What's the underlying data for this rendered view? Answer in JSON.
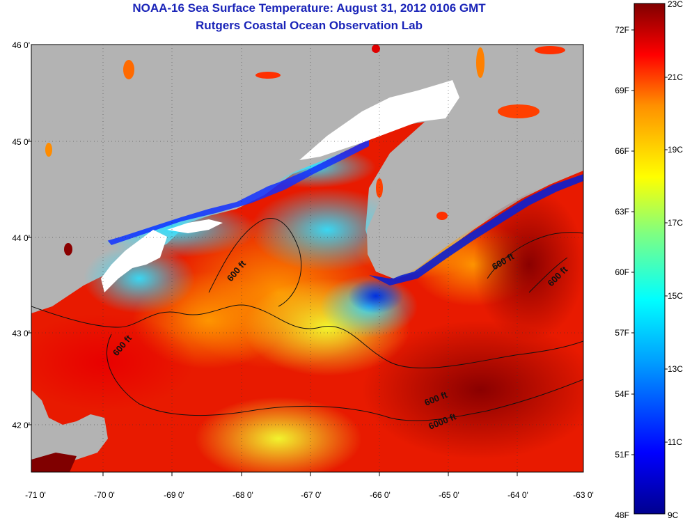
{
  "title": "NOAA-16 Sea Surface Temperature:  August 31, 2012 0106 GMT",
  "subtitle": "Rutgers Coastal Ocean Observation Lab",
  "map": {
    "longitude_ticks": [
      "-71 0'",
      "-70 0'",
      "-69 0'",
      "-68 0'",
      "-67 0'",
      "-66 0'",
      "-65 0'",
      "-64 0'",
      "-63 0'"
    ],
    "latitude_ticks": [
      "46 0'",
      "45 0'",
      "44 0'",
      "43 0'",
      "42 0'"
    ],
    "contour_labels": [
      "600 ft",
      "600 ft",
      "600 ft",
      "600 ft",
      "600 ft",
      "6000 ft"
    ],
    "colors": {
      "land": "#b3b3b3",
      "cloud": "#ffffff"
    }
  },
  "colorbar": {
    "fahrenheit_ticks": [
      "72F",
      "69F",
      "66F",
      "63F",
      "60F",
      "57F",
      "54F",
      "51F",
      "48F"
    ],
    "celsius_ticks": [
      "23C",
      "21C",
      "19C",
      "17C",
      "15C",
      "13C",
      "11C",
      "9C"
    ],
    "colormap": [
      "#00008f",
      "#0000ff",
      "#00a0ff",
      "#00ffff",
      "#80ff80",
      "#ffff00",
      "#ff9000",
      "#ff0000",
      "#800000"
    ]
  }
}
